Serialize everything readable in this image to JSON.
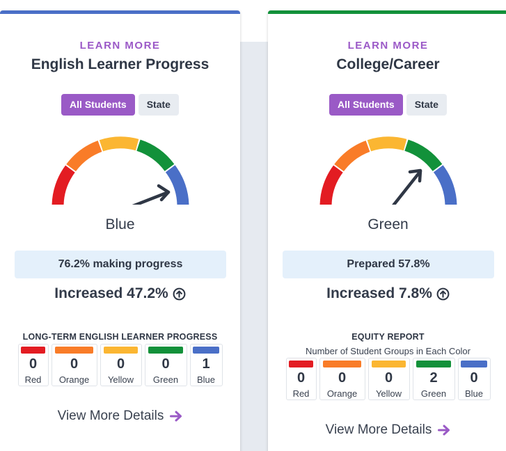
{
  "colors": {
    "red": "#e31c22",
    "orange": "#f97c28",
    "yellow": "#fbb632",
    "green": "#12913a",
    "blue": "#4a6fc7",
    "purple": "#9a5ac6"
  },
  "cards": [
    {
      "learn_more": "LEARN MORE",
      "title": "English Learner Progress",
      "filters": {
        "all_students": "All Students",
        "state": "State"
      },
      "gauge_level": "Blue",
      "status_label": "Blue",
      "metric": "76.2% making progress",
      "change": "Increased 47.2%",
      "change_icon": "arrow-up-circle-icon",
      "section_heading": "LONG-TERM ENGLISH LEARNER PROGRESS",
      "color_counts": [
        {
          "name": "Red",
          "count": "0"
        },
        {
          "name": "Orange",
          "count": "0"
        },
        {
          "name": "Yellow",
          "count": "0"
        },
        {
          "name": "Green",
          "count": "0"
        },
        {
          "name": "Blue",
          "count": "1"
        }
      ],
      "details_link": "View More Details",
      "details_icon": "arrow-right-icon"
    },
    {
      "learn_more": "LEARN MORE",
      "title": "College/Career",
      "filters": {
        "all_students": "All Students",
        "state": "State"
      },
      "gauge_level": "Green",
      "status_label": "Green",
      "metric": "Prepared 57.8%",
      "change": "Increased 7.8%",
      "change_icon": "arrow-up-circle-icon",
      "section_heading": "EQUITY REPORT",
      "section_subheading": "Number of Student Groups in Each Color",
      "color_counts": [
        {
          "name": "Red",
          "count": "0"
        },
        {
          "name": "Orange",
          "count": "0"
        },
        {
          "name": "Yellow",
          "count": "0"
        },
        {
          "name": "Green",
          "count": "2"
        },
        {
          "name": "Blue",
          "count": "0"
        }
      ],
      "details_link": "View More Details",
      "details_icon": "arrow-right-icon"
    }
  ]
}
